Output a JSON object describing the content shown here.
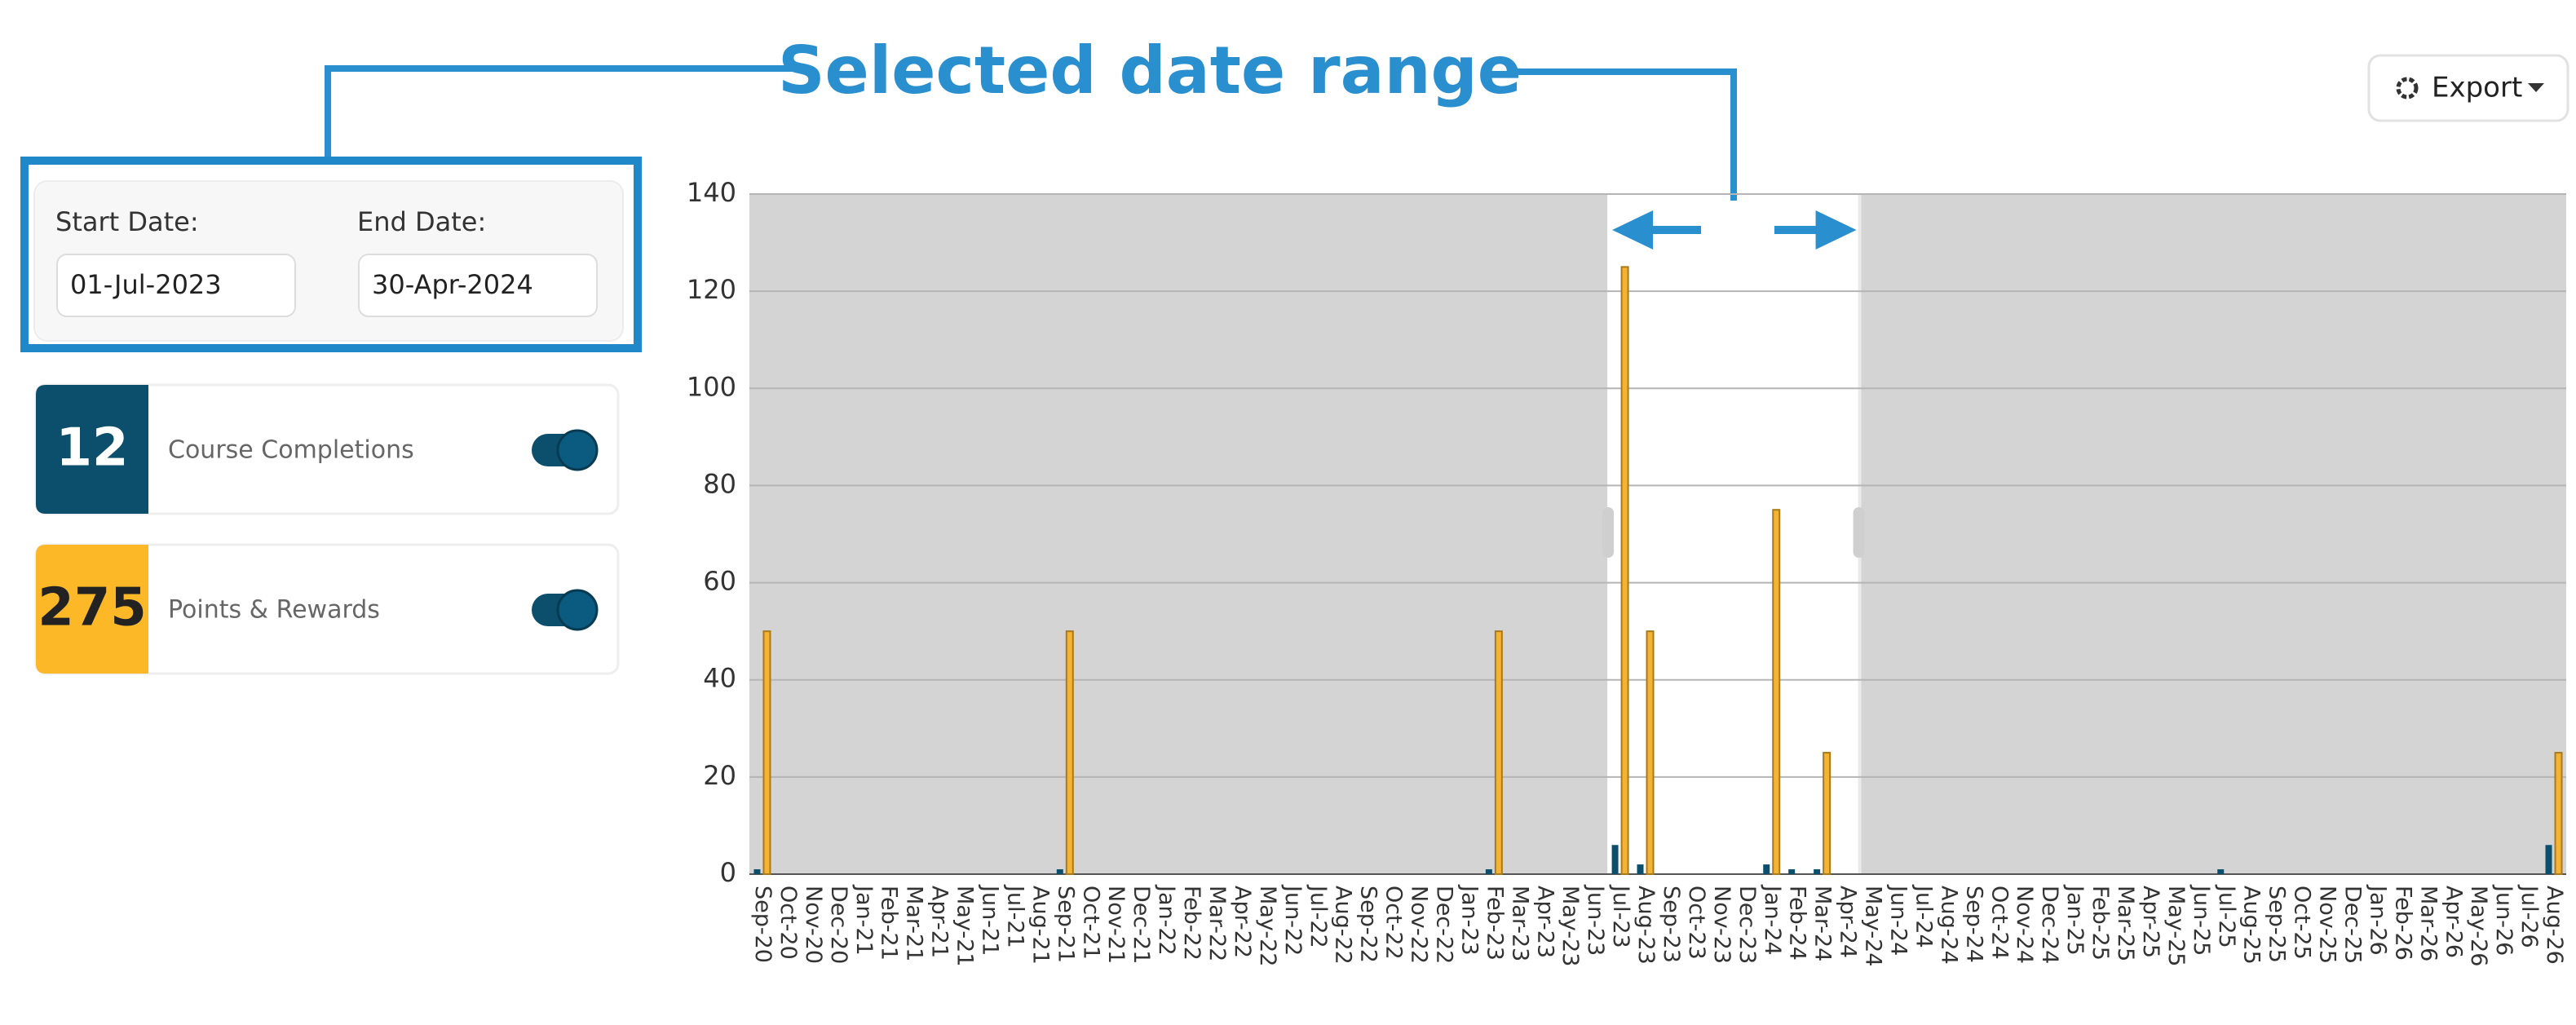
{
  "annotation": "Selected date range",
  "toolbar": {
    "export": "Export"
  },
  "filters": {
    "start_label": "Start Date:",
    "start_value": "01-Jul-2023",
    "end_label": "End Date:",
    "end_value": "30-Apr-2024"
  },
  "chart_data": {
    "type": "bar",
    "categories": [
      "Sep-20",
      "Oct-20",
      "Nov-20",
      "Dec-20",
      "Jan-21",
      "Feb-21",
      "Mar-21",
      "Apr-21",
      "May-21",
      "Jun-21",
      "Jul-21",
      "Aug-21",
      "Sep-21",
      "Oct-21",
      "Nov-21",
      "Dec-21",
      "Jan-22",
      "Feb-22",
      "Mar-22",
      "Apr-22",
      "May-22",
      "Jun-22",
      "Jul-22",
      "Aug-22",
      "Sep-22",
      "Oct-22",
      "Nov-22",
      "Dec-22",
      "Jan-23",
      "Feb-23",
      "Mar-23",
      "Apr-23",
      "May-23",
      "Jun-23",
      "Jul-23",
      "Aug-23",
      "Sep-23",
      "Oct-23",
      "Nov-23",
      "Dec-23",
      "Jan-24",
      "Feb-24",
      "Mar-24",
      "Apr-24",
      "May-24",
      "Jun-24",
      "Jul-24",
      "Aug-24",
      "Sep-24",
      "Oct-24",
      "Nov-24",
      "Dec-24",
      "Jan-25",
      "Feb-25",
      "Mar-25",
      "Apr-25",
      "May-25",
      "Jun-25",
      "Jul-25",
      "Aug-25",
      "Sep-25",
      "Oct-25",
      "Nov-25",
      "Dec-25",
      "Jan-26",
      "Feb-26",
      "Mar-26",
      "Apr-26",
      "May-26",
      "Jun-26",
      "Jul-26",
      "Aug-26"
    ],
    "series": [
      {
        "name": "Course Completions",
        "color": "#0b4f6c",
        "total": 12,
        "values": [
          1,
          0,
          0,
          0,
          0,
          0,
          0,
          0,
          0,
          0,
          0,
          0,
          1,
          0,
          0,
          0,
          0,
          0,
          0,
          0,
          0,
          0,
          0,
          0,
          0,
          0,
          0,
          0,
          0,
          1,
          0,
          0,
          0,
          0,
          6,
          2,
          0,
          0,
          0,
          0,
          2,
          1,
          1,
          0,
          0,
          0,
          0,
          0,
          0,
          0,
          0,
          0,
          0,
          0,
          0,
          0,
          0,
          0,
          1,
          0,
          0,
          0,
          0,
          0,
          0,
          0,
          0,
          0,
          0,
          0,
          0,
          6
        ]
      },
      {
        "name": "Points & Rewards",
        "color": "#f5b335",
        "total": 275,
        "values": [
          50,
          0,
          0,
          0,
          0,
          0,
          0,
          0,
          0,
          0,
          0,
          0,
          50,
          0,
          0,
          0,
          0,
          0,
          0,
          0,
          0,
          0,
          0,
          0,
          0,
          0,
          0,
          0,
          0,
          50,
          0,
          0,
          0,
          0,
          125,
          50,
          0,
          0,
          0,
          0,
          75,
          0,
          25,
          0,
          0,
          0,
          0,
          0,
          0,
          0,
          0,
          0,
          0,
          0,
          0,
          0,
          0,
          0,
          0,
          0,
          0,
          0,
          0,
          0,
          0,
          0,
          0,
          0,
          0,
          0,
          0,
          25
        ]
      }
    ],
    "highlight_range": [
      "Jul-23",
      "Apr-24"
    ],
    "ylim": [
      0,
      140
    ],
    "yticks": [
      0,
      20,
      40,
      60,
      80,
      100,
      120,
      140
    ],
    "grid": true
  }
}
